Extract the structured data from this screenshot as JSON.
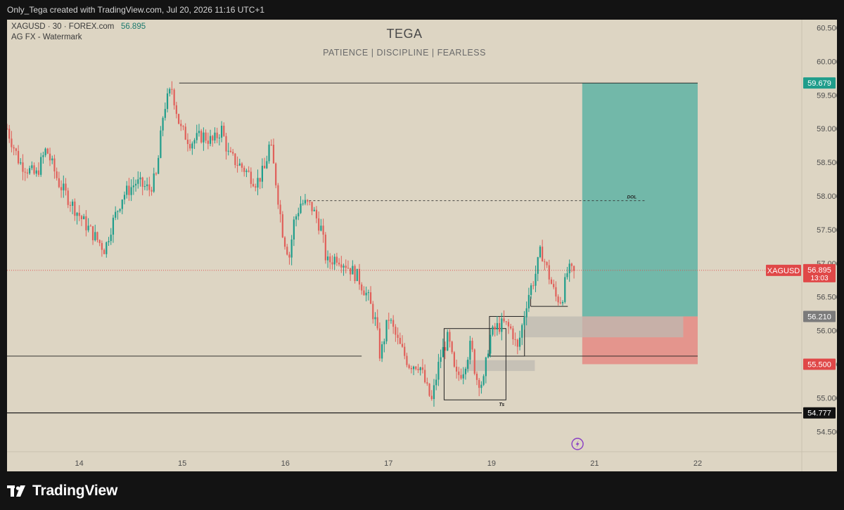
{
  "header": {
    "caption": "Only_Tega created with TradingView.com, Jul 20, 2026 11:16 UTC+1"
  },
  "legend": {
    "symbol_line": "XAGUSD · 30 · FOREX.com",
    "symbol_price": "56.895",
    "indicator": "AG FX - Watermark"
  },
  "watermark": {
    "title": "TEGA",
    "subtitle": "PATIENCE  |  DISCIPLINE  |  FEARLESS"
  },
  "footer": {
    "brand": "TradingView"
  },
  "colors": {
    "background": "#ddd5c3",
    "up_candle": "#1f9d8b",
    "down_candle": "#e0605a",
    "target_zone": "#5fb3a5",
    "stop_zone": "#e58a84",
    "gray_zone": "#bdbab2"
  },
  "chart_data": {
    "type": "candlestick",
    "symbol": "XAGUSD",
    "interval": "30",
    "ylim": [
      54.2,
      60.62
    ],
    "y_ticks": [
      "60.500",
      "60.000",
      "59.500",
      "59.000",
      "58.500",
      "58.000",
      "57.500",
      "57.000",
      "56.500",
      "56.000",
      "55.500",
      "55.000",
      "54.500"
    ],
    "x_ticks": [
      "14",
      "15",
      "16",
      "17",
      "19",
      "21",
      "22"
    ],
    "x_tick_positions": [
      0.7,
      1.7,
      2.7,
      3.7,
      4.7,
      5.7,
      6.7
    ],
    "xlim": [
      0.0,
      7.71
    ],
    "path_points": [
      [
        0.0,
        59.0
      ],
      [
        0.12,
        58.5
      ],
      [
        0.28,
        58.3
      ],
      [
        0.38,
        58.7
      ],
      [
        0.5,
        58.2
      ],
      [
        0.62,
        57.9
      ],
      [
        0.75,
        57.6
      ],
      [
        0.85,
        57.4
      ],
      [
        0.95,
        57.2
      ],
      [
        1.0,
        57.5
      ],
      [
        1.12,
        58.0
      ],
      [
        1.25,
        58.2
      ],
      [
        1.38,
        58.1
      ],
      [
        1.45,
        58.3
      ],
      [
        1.52,
        59.3
      ],
      [
        1.6,
        59.6
      ],
      [
        1.68,
        59.0
      ],
      [
        1.78,
        58.8
      ],
      [
        1.9,
        58.9
      ],
      [
        2.0,
        58.8
      ],
      [
        2.08,
        59.0
      ],
      [
        2.15,
        58.6
      ],
      [
        2.3,
        58.4
      ],
      [
        2.42,
        58.2
      ],
      [
        2.5,
        58.4
      ],
      [
        2.55,
        58.8
      ],
      [
        2.6,
        58.3
      ],
      [
        2.68,
        57.4
      ],
      [
        2.74,
        57.1
      ],
      [
        2.78,
        57.6
      ],
      [
        2.85,
        57.9
      ],
      [
        2.95,
        57.85
      ],
      [
        3.05,
        57.5
      ],
      [
        3.1,
        57.0
      ],
      [
        3.2,
        57.1
      ],
      [
        3.28,
        57.0
      ],
      [
        3.4,
        56.8
      ],
      [
        3.5,
        56.5
      ],
      [
        3.58,
        56.1
      ],
      [
        3.62,
        55.6
      ],
      [
        3.7,
        56.2
      ],
      [
        3.8,
        55.8
      ],
      [
        3.9,
        55.5
      ],
      [
        4.0,
        55.5
      ],
      [
        4.08,
        55.1
      ],
      [
        4.12,
        54.95
      ],
      [
        4.2,
        55.6
      ],
      [
        4.28,
        55.9
      ],
      [
        4.35,
        55.3
      ],
      [
        4.42,
        55.4
      ],
      [
        4.5,
        55.8
      ],
      [
        4.55,
        55.3
      ],
      [
        4.62,
        55.2
      ],
      [
        4.68,
        55.9
      ],
      [
        4.75,
        56.05
      ],
      [
        4.82,
        56.1
      ],
      [
        4.9,
        56.0
      ],
      [
        4.95,
        55.7
      ],
      [
        5.0,
        56.1
      ],
      [
        5.05,
        56.5
      ],
      [
        5.12,
        56.8
      ],
      [
        5.18,
        57.2
      ],
      [
        5.25,
        56.85
      ],
      [
        5.32,
        56.5
      ],
      [
        5.38,
        56.45
      ],
      [
        5.44,
        56.9
      ],
      [
        5.5,
        56.85
      ]
    ],
    "annotations": [
      {
        "type": "hline",
        "label": "DOL",
        "price": 57.93,
        "x_from": 2.93,
        "x_to": 6.19,
        "style": "dashed"
      },
      {
        "type": "hline",
        "price": 59.679,
        "x_from": 1.67,
        "x_to": 6.7
      },
      {
        "type": "hline",
        "price": 55.62,
        "x_from": 0.0,
        "x_to": 3.44
      },
      {
        "type": "hline",
        "price": 55.62,
        "x_from": 5.02,
        "x_to": 6.7
      },
      {
        "type": "hline",
        "price": 54.777,
        "x_from": 0.0,
        "x_to": 7.71
      },
      {
        "type": "box",
        "label": "Ts",
        "x_from": 4.24,
        "x_to": 4.84,
        "y_from": 54.97,
        "y_to": 56.03
      },
      {
        "type": "box",
        "x_from": 4.68,
        "x_to": 5.02,
        "y_from": 55.62,
        "y_to": 56.21
      },
      {
        "type": "box",
        "x_from": 5.08,
        "x_to": 5.44,
        "y_from": 56.36,
        "y_to": 56.36
      }
    ],
    "zones": [
      {
        "name": "target",
        "x_from": 5.58,
        "x_to": 6.7,
        "y_from": 56.21,
        "y_to": 59.679
      },
      {
        "name": "stop",
        "x_from": 5.58,
        "x_to": 6.7,
        "y_from": 55.5,
        "y_to": 56.21
      },
      {
        "name": "gray-upper",
        "x_from": 5.02,
        "x_to": 6.56,
        "y_from": 55.9,
        "y_to": 56.21
      },
      {
        "name": "gray-lower",
        "x_from": 4.45,
        "x_to": 5.12,
        "y_from": 55.4,
        "y_to": 55.56
      }
    ],
    "price_labels": [
      {
        "text": "59.679",
        "price": 59.679,
        "color": "#1f9d8b"
      },
      {
        "text": "56.210",
        "price": 56.21,
        "color": "#7b7b7b"
      },
      {
        "text": "55.500",
        "price": 55.5,
        "color": "#e04848"
      },
      {
        "text": "54.777",
        "price": 54.777,
        "color": "#111111"
      }
    ],
    "current": {
      "symbol": "XAGUSD",
      "price": 56.895,
      "price_text": "56.895",
      "countdown": "13:03",
      "color": "#e04848"
    }
  }
}
